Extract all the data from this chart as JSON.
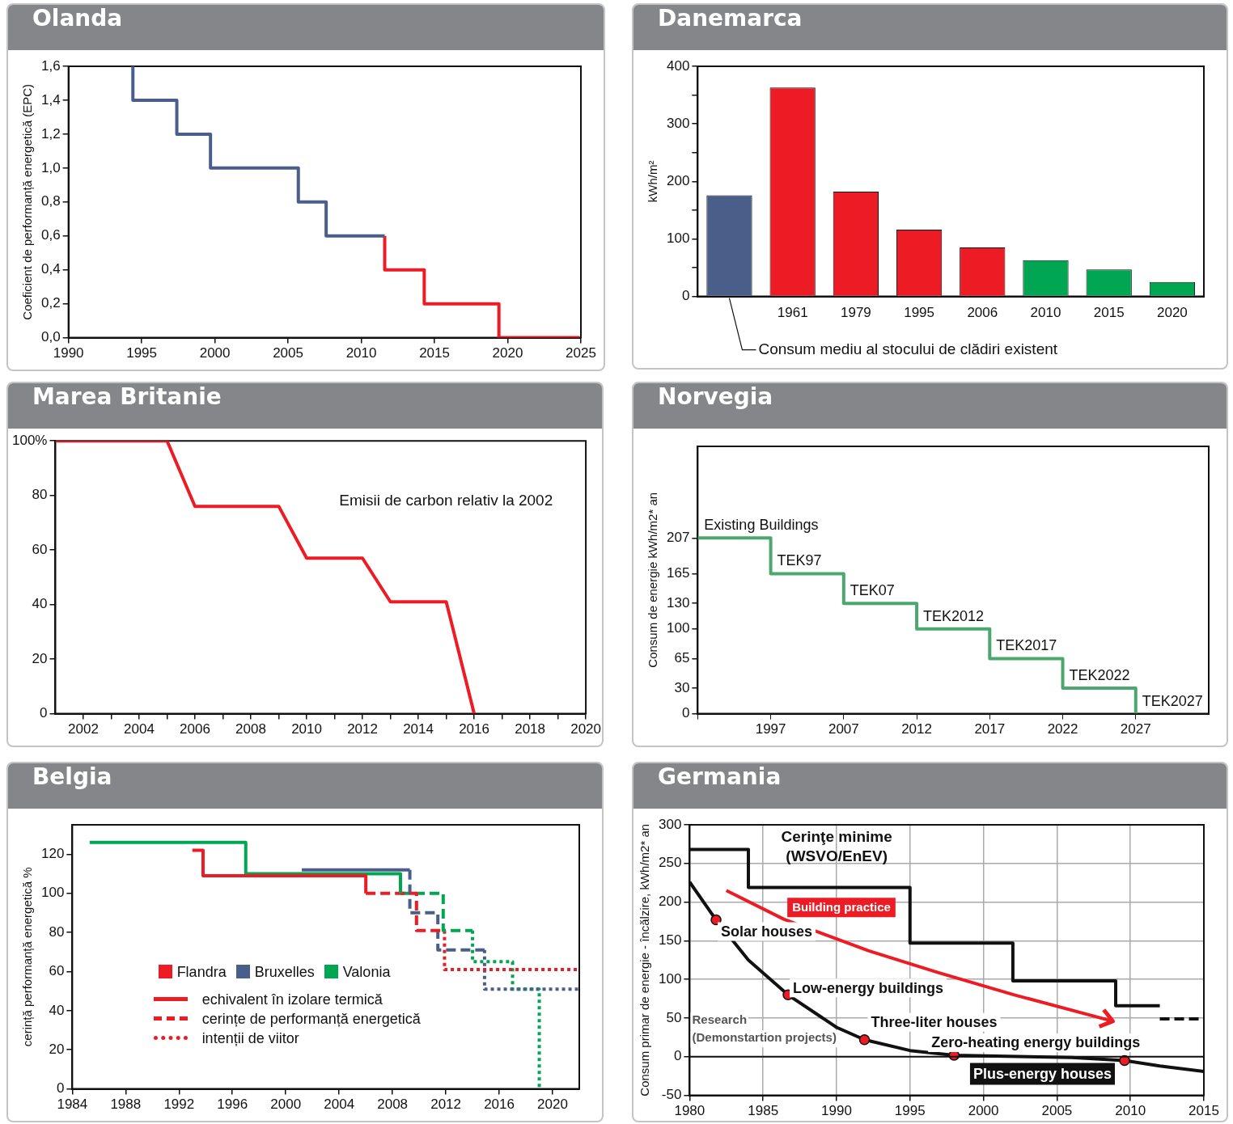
{
  "chart_data": [
    {
      "type": "step",
      "title": "Olanda",
      "ylabel": "Coeficient de performanță energetică (EPC)",
      "xlim": [
        1990,
        2025
      ],
      "xticks": [
        1990,
        1995,
        2000,
        2005,
        2010,
        2015,
        2020,
        2025
      ],
      "ylim": [
        0,
        1.6
      ],
      "yticks": [
        {
          "value": 0,
          "label": "0,0"
        },
        {
          "value": 0.2,
          "label": "0,2"
        },
        {
          "value": 0.4,
          "label": "0,4"
        },
        {
          "value": 0.6,
          "label": "0,6"
        },
        {
          "value": 0.8,
          "label": "0,8"
        },
        {
          "value": 1,
          "label": "1,0"
        },
        {
          "value": 1.2,
          "label": "1,2"
        },
        {
          "value": 1.4,
          "label": "1,4"
        },
        {
          "value": 1.6,
          "label": "1,6"
        }
      ],
      "series": [
        {
          "color": "#4a5e8a",
          "x": [
            1994.4,
            1994.4,
            1997.4,
            1999.7,
            2005.7,
            2007.6,
            2011.6
          ],
          "values": [
            1.6,
            1.4,
            1.2,
            1.0,
            0.8,
            0.6,
            0.6
          ]
        },
        {
          "color": "#ed1c24",
          "x": [
            2011.6,
            2011.6,
            2014.3,
            2019.4,
            2024.9
          ],
          "values": [
            0.6,
            0.4,
            0.2,
            0,
            0
          ]
        }
      ]
    },
    {
      "type": "bar",
      "title": "Danemarca",
      "ylabel": "kWh/m²",
      "categories": [
        null,
        "1961",
        "1979",
        "1995",
        "2006",
        "2010",
        "2015",
        "2020"
      ],
      "values": [
        176,
        363,
        182,
        116,
        85,
        63,
        47,
        25
      ],
      "colors": [
        "#4a5e8a",
        "#ed1c24",
        "#ed1c24",
        "#ed1c24",
        "#ed1c24",
        "#00a651",
        "#00a651",
        "#00a651"
      ],
      "ylim": [
        0,
        400
      ],
      "yticks": [
        0,
        {
          "value": 50,
          "label": null
        },
        100,
        {
          "value": 150,
          "label": null
        },
        200,
        {
          "value": 250,
          "label": null
        },
        300,
        {
          "value": 350,
          "label": null
        },
        400
      ],
      "annotations": [
        "Consum mediu al stocului de clădiri existent"
      ]
    },
    {
      "type": "line",
      "title": "Marea Britanie",
      "xlim": [
        2001,
        2020
      ],
      "xticks": [
        2002,
        {
          "value": 2003,
          "label": null
        },
        2004,
        {
          "value": 2005,
          "label": null
        },
        2006,
        {
          "value": 2007,
          "label": null
        },
        2008,
        {
          "value": 2009,
          "label": null
        },
        2010,
        {
          "value": 2011,
          "label": null
        },
        2012,
        {
          "value": 2013,
          "label": null
        },
        2014,
        {
          "value": 2015,
          "label": null
        },
        2016,
        {
          "value": 2017,
          "label": null
        },
        2018,
        {
          "value": 2019,
          "label": null
        },
        2020
      ],
      "ylim": [
        0,
        100
      ],
      "yticks": [
        0,
        20,
        40,
        60,
        80,
        {
          "value": 100,
          "label": "100%"
        }
      ],
      "series": [
        {
          "color": "#ed1c24",
          "x": [
            2001,
            2005,
            2006,
            2009,
            2010,
            2012,
            2013,
            2015,
            2016
          ],
          "values": [
            100,
            100,
            76,
            76,
            57,
            57,
            41,
            41,
            0
          ]
        }
      ],
      "annotations": [
        "Emisii de carbon relativ la 2002"
      ]
    },
    {
      "type": "step",
      "title": "Norvegia",
      "ylabel": "Consum de energie kWh/m2* an",
      "categories": [
        null,
        "1997",
        "2007",
        "2012",
        "2017",
        "2022",
        "2027"
      ],
      "ylim": [
        0,
        315
      ],
      "yticks": [
        0,
        30,
        65,
        100,
        130,
        165,
        207
      ],
      "series": [
        {
          "color": "#4ca76e",
          "values": [
            207,
            165,
            130,
            100,
            65,
            30,
            0
          ]
        }
      ],
      "annotations": [
        {
          "text": "Existing Buildings",
          "y": 207
        },
        {
          "text": "TEK97",
          "x": "1997",
          "y": 165
        },
        {
          "text": "TEK07",
          "x": "2007",
          "y": 130
        },
        {
          "text": "TEK2012",
          "x": "2012",
          "y": 100
        },
        {
          "text": "TEK2017",
          "x": "2017",
          "y": 65
        },
        {
          "text": "TEK2022",
          "x": "2022",
          "y": 30
        },
        {
          "text": "TEK2027",
          "x": "2027",
          "y": 0
        }
      ]
    },
    {
      "type": "step",
      "title": "Belgia",
      "ylabel": "cerință performanță energetică %",
      "xlim": [
        1984,
        2022
      ],
      "xticks": [
        1984,
        1988,
        1992,
        1996,
        2000,
        2004,
        2008,
        2012,
        2016,
        2020
      ],
      "ylim": [
        0,
        135
      ],
      "yticks": [
        0,
        20,
        40,
        60,
        80,
        100,
        120
      ],
      "legend": "left",
      "series": [
        {
          "name": "Flandra",
          "color": "#ed1c24",
          "line_style": "solid",
          "x": [
            1993,
            1993.8,
            2006
          ],
          "values": [
            122,
            109,
            100
          ]
        },
        {
          "name": "Bruxelles",
          "color": "#4a5e8a",
          "line_style": "solid",
          "x": [
            2001.2,
            2009.3
          ],
          "values": [
            112,
            112
          ]
        },
        {
          "name": "Valonia",
          "color": "#00a651",
          "line_style": "solid",
          "x": [
            1985.3,
            1997,
            2008.6
          ],
          "values": [
            126,
            110,
            100
          ]
        },
        {
          "color": "#ed1c24",
          "line_style": "dashed",
          "x": [
            2006,
            2009.8,
            2011.9
          ],
          "values": [
            100,
            81,
            81
          ]
        },
        {
          "color": "#4a5e8a",
          "line_style": "dashed",
          "x": [
            2009.3,
            2009.3,
            2011.4,
            2014.9
          ],
          "values": [
            112,
            90,
            71,
            71
          ]
        },
        {
          "color": "#00a651",
          "line_style": "dashed",
          "x": [
            2008.6,
            2011.8,
            2014
          ],
          "values": [
            100,
            81,
            81
          ]
        },
        {
          "color": "#ed1c24",
          "line_style": "dotted",
          "x": [
            2011.9,
            2011.9,
            2022
          ],
          "values": [
            81,
            61,
            61
          ]
        },
        {
          "color": "#4a5e8a",
          "line_style": "dotted",
          "x": [
            2014.9,
            2014.9,
            2022
          ],
          "values": [
            71,
            51,
            51
          ]
        },
        {
          "color": "#00a651",
          "line_style": "dotted",
          "x": [
            2014,
            2014,
            2017,
            2019
          ],
          "values": [
            81,
            65,
            51,
            0
          ]
        }
      ],
      "annotations": [
        "echivalent în izolare termică",
        "cerințe de performanță energetică",
        "intenții de viitor"
      ]
    },
    {
      "type": "line",
      "title": "Germania",
      "ylabel": "Consum primar de energie - încălzire, kWh/m2* an",
      "xlim": [
        1980,
        2015
      ],
      "xticks": [
        1980,
        1985,
        1990,
        1995,
        2000,
        2005,
        2010,
        2015
      ],
      "ylim": [
        -50,
        300
      ],
      "yticks": [
        -50,
        0,
        50,
        100,
        150,
        200,
        250,
        300
      ],
      "grid": true,
      "ref_lines": [
        {
          "axis": "y",
          "value": 0,
          "color": "#111111"
        }
      ],
      "series": [
        {
          "name": "Cerinţe minime (WSVO/EnEV)",
          "type": "step",
          "color": "#111111",
          "x": [
            1980,
            1984,
            1995,
            2002,
            2009,
            2012
          ],
          "values": [
            268,
            219,
            147,
            98,
            66,
            66
          ]
        },
        {
          "type": "step",
          "color": "#111111",
          "line_style": "dashed",
          "x": [
            2012,
            2015
          ],
          "values": [
            49,
            49
          ]
        },
        {
          "name": "Research (Demonstartion projects)",
          "color": "#111111",
          "x": [
            1980,
            1981.8,
            1984,
            1986.7,
            1990,
            1991.9,
            1995,
            1998,
            2003,
            2006,
            2009.6,
            2012,
            2015
          ],
          "values": [
            226,
            177,
            125,
            80,
            38,
            22,
            8,
            2,
            0,
            -1,
            -5,
            -12,
            -19
          ]
        },
        {
          "name": "Building practice",
          "color": "#ed1c24",
          "x": [
            1982.5,
            1986.4,
            1992.2,
            1996.9,
            2002.1,
            2008.8
          ],
          "values": [
            215,
            178,
            137,
            109,
            80,
            46
          ]
        },
        {
          "type": "scatter",
          "color": "#ed1c24",
          "marker": "circle",
          "x": [
            1981.8,
            1986.7,
            1991.9,
            1998,
            2009.6
          ],
          "values": [
            177,
            80,
            22,
            2,
            -5
          ]
        }
      ],
      "annotations": [
        {
          "text": "Solar houses",
          "x": 1981.8,
          "y": 177
        },
        {
          "text": "Low-energy buildings",
          "x": 1986.7,
          "y": 80
        },
        {
          "text": "Three-liter houses",
          "x": 1991.9,
          "y": 22
        },
        {
          "text": "Zero-heating energy buildings",
          "x": 1998,
          "y": 2
        },
        {
          "text": "Plus-energy houses",
          "x": 2009.6,
          "y": -5
        }
      ]
    }
  ]
}
